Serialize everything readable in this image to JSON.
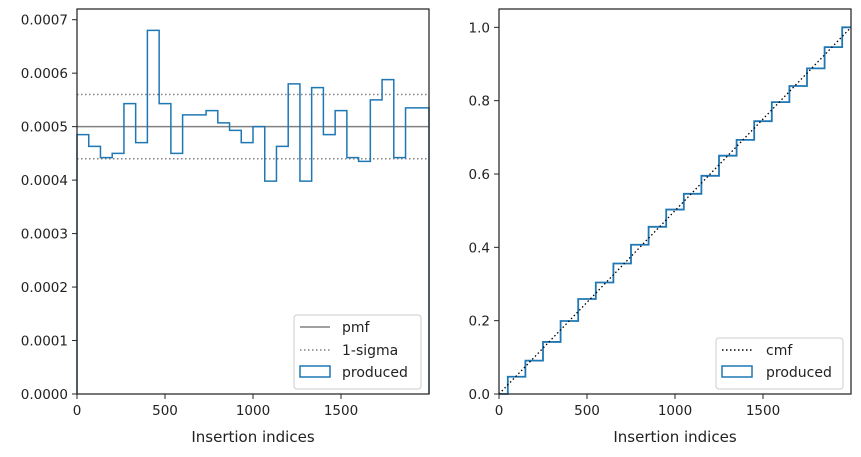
{
  "chart_data": [
    {
      "type": "histogram",
      "xlabel": "Insertion indices",
      "ylabel": "",
      "xlim": [
        0,
        2000
      ],
      "ylim": [
        0,
        0.00072
      ],
      "xticks": [
        0,
        500,
        1000,
        1500
      ],
      "xtick_labels": [
        "0",
        "500",
        "1000",
        "1500"
      ],
      "yticks": [
        0,
        0.0001,
        0.0002,
        0.0003,
        0.0004,
        0.0005,
        0.0006,
        0.0007
      ],
      "ytick_labels": [
        "0.0000",
        "0.0001",
        "0.0002",
        "0.0003",
        "0.0004",
        "0.0005",
        "0.0006",
        "0.0007"
      ],
      "bin_edges": [
        0,
        66.7,
        133.3,
        200,
        266.7,
        333.3,
        400,
        466.7,
        533.3,
        600,
        666.7,
        733.3,
        800,
        866.7,
        933.3,
        1000,
        1066.7,
        1133.3,
        1200,
        1266.7,
        1333.3,
        1400,
        1466.7,
        1533.3,
        1600,
        1666.7,
        1733.3,
        1800,
        1866.7,
        1933.3,
        2000
      ],
      "series": [
        {
          "name": "produced",
          "style": "step",
          "color": "#1f77b4",
          "values": [
            0.000485,
            0.000463,
            0.000442,
            0.00045,
            0.000543,
            0.00047,
            0.00068,
            0.000543,
            0.00045,
            0.000522,
            0.000522,
            0.00053,
            0.000507,
            0.000493,
            0.00047,
            0.0005,
            0.000398,
            0.000463,
            0.00058,
            0.000398,
            0.000573,
            0.000485,
            0.00053,
            0.000442,
            0.000435,
            0.00055,
            0.000588,
            0.000442,
            0.000535,
            0.000535
          ]
        }
      ],
      "reference_lines": [
        {
          "name": "pmf",
          "y": 0.0005,
          "color": "#808080",
          "style": "solid"
        },
        {
          "name": "1-sigma",
          "y": 0.00056,
          "color": "#808080",
          "style": "dotted"
        },
        {
          "name": "1-sigma",
          "y": 0.00044,
          "color": "#808080",
          "style": "dotted"
        }
      ],
      "legend": {
        "placement": "lower-right",
        "entries": [
          "pmf",
          "1-sigma",
          "produced"
        ]
      },
      "grid": false
    },
    {
      "type": "line",
      "xlabel": "Insertion indices",
      "ylabel": "",
      "xlim": [
        0,
        2000
      ],
      "ylim": [
        0,
        1.05
      ],
      "xticks": [
        0,
        500,
        1000,
        1500
      ],
      "xtick_labels": [
        "0",
        "500",
        "1000",
        "1500"
      ],
      "yticks": [
        0,
        0.2,
        0.4,
        0.6,
        0.8,
        1.0
      ],
      "ytick_labels": [
        "0.0",
        "0.2",
        "0.4",
        "0.6",
        "0.8",
        "1.0"
      ],
      "x": [
        0,
        100,
        200,
        300,
        400,
        500,
        600,
        700,
        800,
        900,
        1000,
        1100,
        1200,
        1300,
        1400,
        1500,
        1600,
        1700,
        1800,
        1900,
        2000
      ],
      "series": [
        {
          "name": "cmf",
          "color": "#000000",
          "style": "dotted",
          "values": [
            0,
            0.05,
            0.1,
            0.15,
            0.2,
            0.25,
            0.3,
            0.35,
            0.4,
            0.45,
            0.5,
            0.55,
            0.6,
            0.65,
            0.7,
            0.75,
            0.8,
            0.85,
            0.9,
            0.95,
            1.0
          ]
        },
        {
          "name": "produced",
          "color": "#1f77b4",
          "style": "step",
          "values": [
            0,
            0.047,
            0.091,
            0.142,
            0.199,
            0.259,
            0.304,
            0.356,
            0.407,
            0.456,
            0.503,
            0.546,
            0.595,
            0.65,
            0.693,
            0.744,
            0.796,
            0.84,
            0.888,
            0.946,
            1.0
          ]
        }
      ],
      "legend": {
        "placement": "lower-right",
        "entries": [
          "cmf",
          "produced"
        ]
      },
      "grid": false
    }
  ]
}
